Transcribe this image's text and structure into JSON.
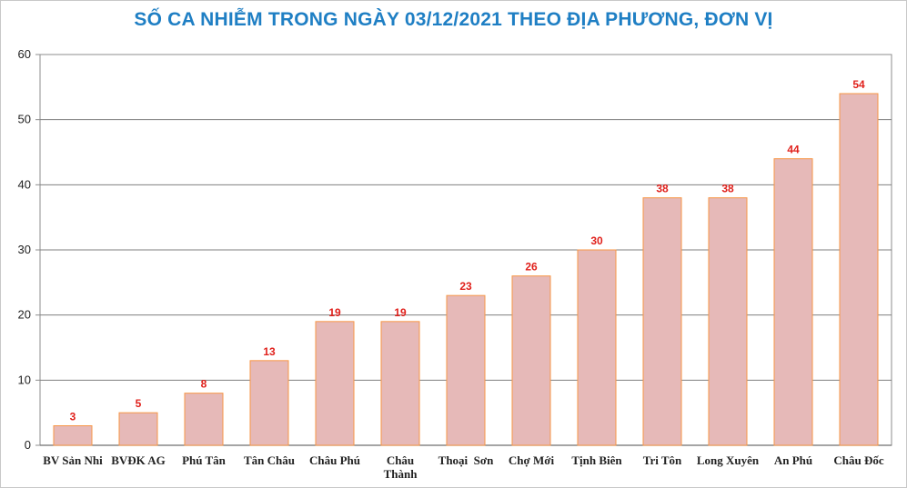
{
  "chart_data": {
    "type": "bar",
    "title": "SỐ CA NHIỄM TRONG NGÀY 03/12/2021 THEO ĐỊA PHƯƠNG, ĐƠN VỊ",
    "xlabel": "",
    "ylabel": "",
    "categories": [
      [
        "BV Sản Nhi"
      ],
      [
        "BVĐK AG"
      ],
      [
        "Phú Tân"
      ],
      [
        "Tân Châu"
      ],
      [
        "Châu Phú"
      ],
      [
        "Châu",
        "Thành"
      ],
      [
        "Thoại  Sơn"
      ],
      [
        "Chợ Mới"
      ],
      [
        "Tịnh Biên"
      ],
      [
        "Tri Tôn"
      ],
      [
        "Long Xuyên"
      ],
      [
        "An Phú"
      ],
      [
        "Châu Đốc"
      ]
    ],
    "values": [
      3,
      5,
      8,
      13,
      19,
      19,
      23,
      26,
      30,
      38,
      38,
      44,
      54
    ],
    "ylim": [
      0,
      60
    ],
    "yticks": [
      0,
      10,
      20,
      30,
      40,
      50,
      60
    ],
    "grid": true,
    "legend": "none",
    "colors": {
      "bar_fill": "#e6b9b8",
      "bar_stroke": "#f79646",
      "data_label": "#e0201b",
      "title": "#1f7fc4",
      "gridline": "#7f7f7f"
    }
  }
}
